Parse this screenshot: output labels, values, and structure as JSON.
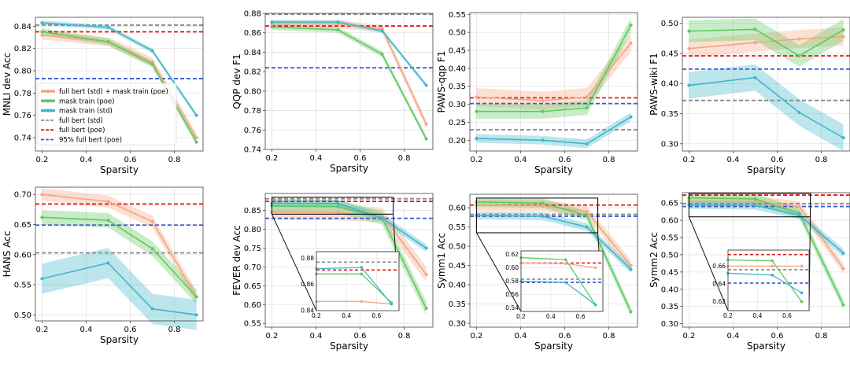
{
  "colors": {
    "full_std_mask_poe": "#f4a582",
    "mask_poe": "#5ec95e",
    "mask_std": "#3fb6c9",
    "full_std": "#888888",
    "full_poe": "#e41a1c",
    "pct95_poe": "#3a5bd9"
  },
  "legend": [
    {
      "key": "full_std_mask_poe",
      "label": "full bert (std) + mask train (poe)",
      "style": "line-marker"
    },
    {
      "key": "mask_poe",
      "label": "mask train (poe)",
      "style": "line-marker"
    },
    {
      "key": "mask_std",
      "label": "mask train (std)",
      "style": "line-marker"
    },
    {
      "key": "full_std",
      "label": "full bert (std)",
      "style": "dashed"
    },
    {
      "key": "full_poe",
      "label": "full bert (poe)",
      "style": "dashed"
    },
    {
      "key": "pct95_poe",
      "label": "95% full bert (poe)",
      "style": "dashed"
    }
  ],
  "chart_data": [
    {
      "type": "line",
      "id": "mnli",
      "xlabel": "Sparsity",
      "ylabel": "MNLI dev Acc",
      "xlim": [
        0.17,
        0.93
      ],
      "ylim": [
        0.728,
        0.848
      ],
      "xticks": [
        0.2,
        0.4,
        0.6,
        0.8
      ],
      "yticks": [
        0.74,
        0.76,
        0.78,
        0.8,
        0.82,
        0.84
      ],
      "x": [
        0.2,
        0.5,
        0.7,
        0.9
      ],
      "series": [
        {
          "key": "full_std_mask_poe",
          "values": [
            0.832,
            0.826,
            0.808,
            0.74
          ],
          "band": 0.004
        },
        {
          "key": "mask_poe",
          "values": [
            0.835,
            0.826,
            0.806,
            0.736
          ],
          "band": 0.003
        },
        {
          "key": "mask_std",
          "values": [
            0.843,
            0.839,
            0.818,
            0.76
          ],
          "band": 0.002
        }
      ],
      "hlines": [
        {
          "key": "full_std",
          "y": 0.841
        },
        {
          "key": "full_poe",
          "y": 0.835
        },
        {
          "key": "pct95_poe",
          "y": 0.793
        }
      ],
      "legend": true
    },
    {
      "type": "line",
      "id": "qqp",
      "xlabel": "Sparsity",
      "ylabel": "QQP dev F1",
      "xlim": [
        0.17,
        0.93
      ],
      "ylim": [
        0.74,
        0.88
      ],
      "xticks": [
        0.2,
        0.4,
        0.6,
        0.8
      ],
      "yticks": [
        0.74,
        0.76,
        0.78,
        0.8,
        0.82,
        0.84,
        0.86,
        0.88
      ],
      "x": [
        0.2,
        0.5,
        0.7,
        0.9
      ],
      "series": [
        {
          "key": "full_std_mask_poe",
          "values": [
            0.869,
            0.869,
            0.864,
            0.766
          ],
          "band": 0.004
        },
        {
          "key": "mask_poe",
          "values": [
            0.866,
            0.863,
            0.838,
            0.751
          ],
          "band": 0.003
        },
        {
          "key": "mask_std",
          "values": [
            0.871,
            0.871,
            0.862,
            0.806
          ],
          "band": 0.002
        }
      ],
      "hlines": [
        {
          "key": "full_std",
          "y": 0.879
        },
        {
          "key": "full_poe",
          "y": 0.867
        },
        {
          "key": "pct95_poe",
          "y": 0.824
        }
      ]
    },
    {
      "type": "line",
      "id": "paws_qqp",
      "xlabel": "Sparsity",
      "ylabel": "PAWS-qqp F1",
      "xlim": [
        0.17,
        0.93
      ],
      "ylim": [
        0.17,
        0.555
      ],
      "xticks": [
        0.2,
        0.4,
        0.6,
        0.8
      ],
      "yticks": [
        0.2,
        0.25,
        0.3,
        0.35,
        0.4,
        0.45,
        0.5,
        0.55
      ],
      "x": [
        0.2,
        0.5,
        0.7,
        0.9
      ],
      "series": [
        {
          "key": "full_std_mask_poe",
          "values": [
            0.32,
            0.31,
            0.32,
            0.47
          ],
          "band": 0.025
        },
        {
          "key": "mask_poe",
          "values": [
            0.28,
            0.28,
            0.29,
            0.52
          ],
          "band": 0.02
        },
        {
          "key": "mask_std",
          "values": [
            0.205,
            0.2,
            0.19,
            0.265
          ],
          "band": 0.012
        }
      ],
      "hlines": [
        {
          "key": "full_std",
          "y": 0.229
        },
        {
          "key": "full_poe",
          "y": 0.318
        },
        {
          "key": "pct95_poe",
          "y": 0.302
        }
      ]
    },
    {
      "type": "line",
      "id": "paws_wiki",
      "xlabel": "Sparsity",
      "ylabel": "PAWS-wiki F1",
      "xlim": [
        0.17,
        0.93
      ],
      "ylim": [
        0.288,
        0.51
      ],
      "xticks": [
        0.2,
        0.4,
        0.6,
        0.8
      ],
      "yticks": [
        0.3,
        0.35,
        0.4,
        0.45,
        0.5
      ],
      "x": [
        0.2,
        0.5,
        0.7,
        0.9
      ],
      "series": [
        {
          "key": "full_std_mask_poe",
          "values": [
            0.458,
            0.468,
            0.474,
            0.478
          ],
          "band": 0.015
        },
        {
          "key": "mask_poe",
          "values": [
            0.487,
            0.49,
            0.446,
            0.489
          ],
          "band": 0.018
        },
        {
          "key": "mask_std",
          "values": [
            0.397,
            0.41,
            0.352,
            0.31
          ],
          "band": 0.022
        }
      ],
      "hlines": [
        {
          "key": "full_std",
          "y": 0.372
        },
        {
          "key": "full_poe",
          "y": 0.446
        },
        {
          "key": "pct95_poe",
          "y": 0.424
        }
      ]
    },
    {
      "type": "line",
      "id": "hans",
      "xlabel": "Sparsity",
      "ylabel": "HANS Acc",
      "xlim": [
        0.17,
        0.93
      ],
      "ylim": [
        0.49,
        0.712
      ],
      "xticks": [
        0.2,
        0.4,
        0.6,
        0.8
      ],
      "yticks": [
        0.5,
        0.55,
        0.6,
        0.65,
        0.7
      ],
      "x": [
        0.2,
        0.5,
        0.7,
        0.9
      ],
      "series": [
        {
          "key": "full_std_mask_poe",
          "values": [
            0.7,
            0.688,
            0.655,
            0.53
          ],
          "band": 0.01
        },
        {
          "key": "mask_poe",
          "values": [
            0.662,
            0.657,
            0.61,
            0.53
          ],
          "band": 0.012
        },
        {
          "key": "mask_std",
          "values": [
            0.56,
            0.586,
            0.51,
            0.5
          ],
          "band": 0.025
        }
      ],
      "hlines": [
        {
          "key": "full_std",
          "y": 0.603
        },
        {
          "key": "full_poe",
          "y": 0.684
        },
        {
          "key": "pct95_poe",
          "y": 0.649
        }
      ]
    },
    {
      "type": "line",
      "id": "fever",
      "xlabel": "Sparsity",
      "ylabel": "FEVER dev Acc",
      "xlim": [
        0.17,
        0.93
      ],
      "ylim": [
        0.54,
        0.895
      ],
      "xticks": [
        0.2,
        0.4,
        0.6,
        0.8
      ],
      "yticks": [
        0.55,
        0.6,
        0.65,
        0.7,
        0.75,
        0.8,
        0.85
      ],
      "x": [
        0.2,
        0.5,
        0.7,
        0.9
      ],
      "series": [
        {
          "key": "full_std_mask_poe",
          "values": [
            0.845,
            0.844,
            0.838,
            0.68
          ],
          "band": 0.02
        },
        {
          "key": "mask_poe",
          "values": [
            0.862,
            0.86,
            0.83,
            0.59
          ],
          "band": 0.018
        },
        {
          "key": "mask_std",
          "values": [
            0.869,
            0.868,
            0.83,
            0.75
          ],
          "band": 0.01
        }
      ],
      "hlines": [
        {
          "key": "full_std",
          "y": 0.881
        },
        {
          "key": "full_poe",
          "y": 0.874
        },
        {
          "key": "pct95_poe",
          "y": 0.829
        }
      ],
      "inset": {
        "xlim": [
          0.2,
          0.75
        ],
        "ylim": [
          0.84,
          0.885
        ],
        "xticks": [
          0.2,
          0.4,
          0.6
        ],
        "yticks": [
          0.84,
          0.86,
          0.88
        ],
        "x": [
          0.2,
          0.5,
          0.7
        ],
        "series": [
          {
            "key": "full_std_mask_poe",
            "values": [
              0.847,
              0.847,
              0.845
            ]
          },
          {
            "key": "mask_poe",
            "values": [
              0.868,
              0.868,
              0.846
            ]
          },
          {
            "key": "mask_std",
            "values": [
              0.872,
              0.873,
              0.845
            ]
          }
        ],
        "hlines": [
          {
            "key": "full_std",
            "y": 0.877
          },
          {
            "key": "full_poe",
            "y": 0.871
          }
        ]
      }
    },
    {
      "type": "line",
      "id": "symm1",
      "xlabel": "Sparsity",
      "ylabel": "Symm1 Acc",
      "xlim": [
        0.17,
        0.93
      ],
      "ylim": [
        0.29,
        0.635
      ],
      "xticks": [
        0.2,
        0.4,
        0.6,
        0.8
      ],
      "yticks": [
        0.3,
        0.35,
        0.4,
        0.45,
        0.5,
        0.55,
        0.6
      ],
      "x": [
        0.2,
        0.5,
        0.7,
        0.9
      ],
      "series": [
        {
          "key": "full_std_mask_poe",
          "values": [
            0.607,
            0.605,
            0.59,
            0.45
          ],
          "band": 0.015
        },
        {
          "key": "mask_poe",
          "values": [
            0.615,
            0.612,
            0.58,
            0.33
          ],
          "band": 0.012
        },
        {
          "key": "mask_std",
          "values": [
            0.58,
            0.578,
            0.55,
            0.44
          ],
          "band": 0.01
        }
      ],
      "hlines": [
        {
          "key": "full_std",
          "y": 0.583
        },
        {
          "key": "full_poe",
          "y": 0.607
        },
        {
          "key": "pct95_poe",
          "y": 0.578
        }
      ],
      "inset": {
        "xlim": [
          0.2,
          0.75
        ],
        "ylim": [
          0.535,
          0.625
        ],
        "xticks": [
          0.2,
          0.4,
          0.6
        ],
        "yticks": [
          0.54,
          0.56,
          0.58,
          0.6,
          0.62
        ],
        "x": [
          0.2,
          0.5,
          0.7
        ],
        "series": [
          {
            "key": "full_std_mask_poe",
            "values": [
              0.607,
              0.606,
              0.6
            ]
          },
          {
            "key": "mask_poe",
            "values": [
              0.615,
              0.612,
              0.545
            ]
          },
          {
            "key": "mask_std",
            "values": [
              0.58,
              0.578,
              0.545
            ]
          }
        ],
        "hlines": [
          {
            "key": "full_std",
            "y": 0.583
          },
          {
            "key": "full_poe",
            "y": 0.607
          },
          {
            "key": "pct95_poe",
            "y": 0.578
          }
        ]
      }
    },
    {
      "type": "line",
      "id": "symm2",
      "xlabel": "Sparsity",
      "ylabel": "Symm2 Acc",
      "xlim": [
        0.17,
        0.93
      ],
      "ylim": [
        0.29,
        0.68
      ],
      "xticks": [
        0.2,
        0.4,
        0.6,
        0.8
      ],
      "yticks": [
        0.3,
        0.35,
        0.4,
        0.45,
        0.5,
        0.55,
        0.6,
        0.65
      ],
      "x": [
        0.2,
        0.5,
        0.7,
        0.9
      ],
      "series": [
        {
          "key": "full_std_mask_poe",
          "values": [
            0.655,
            0.655,
            0.64,
            0.46
          ],
          "band": 0.015
        },
        {
          "key": "mask_poe",
          "values": [
            0.665,
            0.662,
            0.62,
            0.355
          ],
          "band": 0.015
        },
        {
          "key": "mask_std",
          "values": [
            0.645,
            0.643,
            0.615,
            0.505
          ],
          "band": 0.012
        }
      ],
      "hlines": [
        {
          "key": "full_std",
          "y": 0.648
        },
        {
          "key": "full_poe",
          "y": 0.673
        },
        {
          "key": "pct95_poe",
          "y": 0.64
        }
      ],
      "inset": {
        "xlim": [
          0.2,
          0.75
        ],
        "ylim": [
          0.61,
          0.678
        ],
        "xticks": [
          0.2,
          0.4,
          0.6
        ],
        "yticks": [
          0.62,
          0.64,
          0.66
        ],
        "x": [
          0.2,
          0.5,
          0.7
        ],
        "series": [
          {
            "key": "full_std_mask_poe",
            "values": [
              0.66,
              0.66,
              0.66
            ]
          },
          {
            "key": "mask_poe",
            "values": [
              0.667,
              0.666,
              0.62
            ]
          },
          {
            "key": "mask_std",
            "values": [
              0.652,
              0.65,
              0.63
            ]
          }
        ],
        "hlines": [
          {
            "key": "full_std",
            "y": 0.656
          },
          {
            "key": "full_poe",
            "y": 0.673
          },
          {
            "key": "pct95_poe",
            "y": 0.641
          }
        ]
      }
    }
  ]
}
